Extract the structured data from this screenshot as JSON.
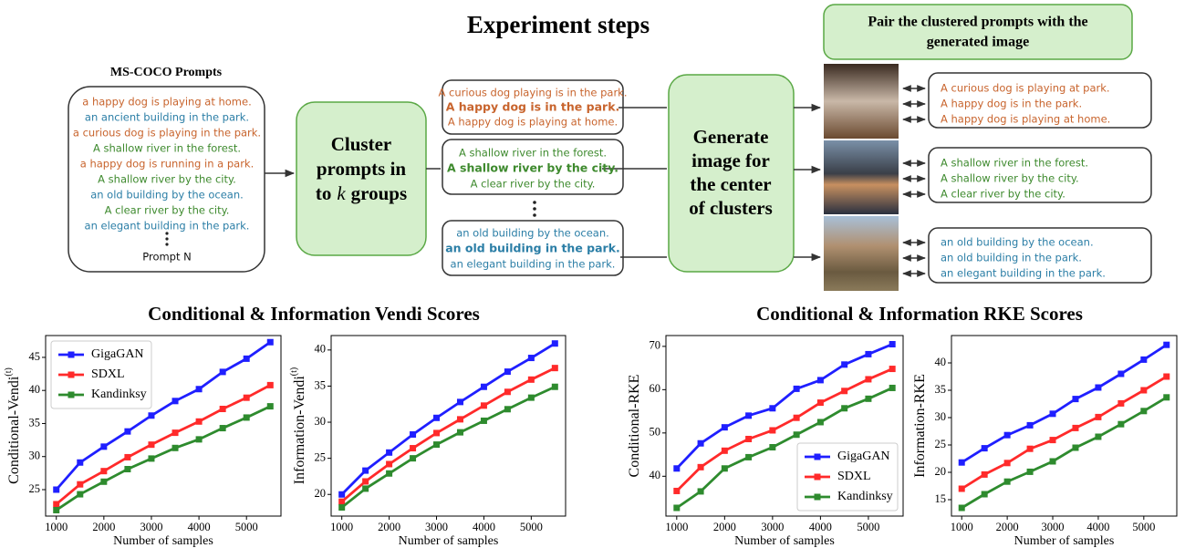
{
  "diagram": {
    "title": "Experiment steps",
    "pair_box": [
      "Pair the clustered prompts with the",
      "generated image"
    ],
    "prompts": {
      "label": "MS-COCO Prompts",
      "lines": [
        {
          "text": "a happy dog is playing at home.",
          "color": "#c8642d"
        },
        {
          "text": "an ancient building in the park.",
          "color": "#2b7ea6"
        },
        {
          "text": "a curious dog is playing in the park.",
          "color": "#c8642d"
        },
        {
          "text": "A shallow river in the forest.",
          "color": "#3e8a2e"
        },
        {
          "text": "a happy dog is running in a park.",
          "color": "#c8642d"
        },
        {
          "text": "A shallow river by the city.",
          "color": "#3e8a2e"
        },
        {
          "text": "an old building by the ocean.",
          "color": "#2b7ea6"
        },
        {
          "text": "A clear river by the city.",
          "color": "#3e8a2e"
        },
        {
          "text": "an elegant building in the park.",
          "color": "#2b7ea6"
        }
      ],
      "last": "Prompt N"
    },
    "cluster_box": {
      "lines": [
        "Cluster",
        "prompts in"
      ],
      "last_pre": "to",
      "k": "k",
      "last_post": "groups"
    },
    "clusters": [
      {
        "color": "#c8642d",
        "lines": [
          {
            "text": "A curious dog playing is in the park."
          },
          {
            "text": "A happy dog is in the park.",
            "bold": true
          },
          {
            "text": "A happy dog is playing at home."
          }
        ]
      },
      {
        "color": "#3e8a2e",
        "lines": [
          {
            "text": "A shallow river in the forest."
          },
          {
            "text": "A shallow river by the city.",
            "bold": true
          },
          {
            "text": "A clear river by the city."
          }
        ]
      },
      {
        "color": "#2b7ea6",
        "lines": [
          {
            "text": "an old building by the ocean."
          },
          {
            "text": "an old building in the park.",
            "bold": true
          },
          {
            "text": "an elegant building in the park."
          }
        ]
      }
    ],
    "generate_box": [
      "Generate",
      "image for",
      "the center",
      "of clusters"
    ],
    "pairs": [
      {
        "color": "#c8642d",
        "lines": [
          "A curious dog is playing at park.",
          "A happy dog is in the park.",
          "A happy dog is playing at home."
        ]
      },
      {
        "color": "#3e8a2e",
        "lines": [
          "A shallow river in the forest.",
          "A shallow river by the city.",
          "A clear river by the city."
        ]
      },
      {
        "color": "#2b7ea6",
        "lines": [
          "an old building by the ocean.",
          "an old building in the park.",
          "an elegant building in the park."
        ]
      }
    ]
  },
  "section_titles": [
    "Conditional & Information Vendi Scores",
    "Conditional & Information RKE Scores"
  ],
  "chart_data": [
    {
      "type": "line",
      "xlabel": "Number of samples",
      "ylabel": "Conditional-Vendi",
      "ylabel_sup": "(t)",
      "x": [
        1000,
        1500,
        2000,
        2500,
        3000,
        3500,
        4000,
        4500,
        5000,
        5500
      ],
      "xlim": [
        775,
        5725
      ],
      "xticks": [
        1000,
        2000,
        3000,
        4000,
        5000
      ],
      "ylim": [
        21,
        48.3
      ],
      "yticks": [
        25,
        30,
        35,
        40,
        45
      ],
      "legend": "upper left",
      "series": [
        {
          "name": "GigaGAN",
          "color": "#1f1fff",
          "values": [
            25.0,
            29.1,
            31.5,
            33.8,
            36.2,
            38.4,
            40.2,
            42.8,
            44.8,
            47.3
          ]
        },
        {
          "name": "SDXL",
          "color": "#ff2a2a",
          "values": [
            22.8,
            25.8,
            27.8,
            29.9,
            31.8,
            33.6,
            35.3,
            37.2,
            38.9,
            40.8
          ]
        },
        {
          "name": "Kandinksy",
          "color": "#2e8b2e",
          "values": [
            21.9,
            24.3,
            26.2,
            28.1,
            29.7,
            31.3,
            32.6,
            34.3,
            35.9,
            37.6
          ]
        }
      ]
    },
    {
      "type": "line",
      "xlabel": "Number of samples",
      "ylabel": "Information-Vendi",
      "ylabel_sup": "(t)",
      "x": [
        1000,
        1500,
        2000,
        2500,
        3000,
        3500,
        4000,
        4500,
        5000,
        5500
      ],
      "xlim": [
        775,
        5725
      ],
      "xticks": [
        1000,
        2000,
        3000,
        4000,
        5000
      ],
      "ylim": [
        17,
        42
      ],
      "yticks": [
        20,
        25,
        30,
        35,
        40
      ],
      "legend": false,
      "series": [
        {
          "name": "GigaGAN",
          "color": "#1f1fff",
          "values": [
            20.0,
            23.3,
            25.8,
            28.3,
            30.6,
            32.8,
            34.9,
            37.0,
            38.9,
            40.9
          ]
        },
        {
          "name": "SDXL",
          "color": "#ff2a2a",
          "values": [
            19.0,
            21.8,
            24.2,
            26.4,
            28.5,
            30.4,
            32.3,
            34.2,
            35.9,
            37.5
          ]
        },
        {
          "name": "Kandinksy",
          "color": "#2e8b2e",
          "values": [
            18.2,
            20.8,
            22.9,
            25.0,
            26.9,
            28.6,
            30.2,
            31.8,
            33.4,
            34.9
          ]
        }
      ]
    },
    {
      "type": "line",
      "xlabel": "Number of samples",
      "ylabel": "Conditional-RKE",
      "x": [
        1000,
        1500,
        2000,
        2500,
        3000,
        3500,
        4000,
        4500,
        5000,
        5500
      ],
      "xlim": [
        775,
        5725
      ],
      "xticks": [
        1000,
        2000,
        3000,
        4000,
        5000
      ],
      "ylim": [
        30.8,
        72.5
      ],
      "yticks": [
        40,
        50,
        60,
        70
      ],
      "legend": "lower right",
      "series": [
        {
          "name": "GigaGAN",
          "color": "#1f1fff",
          "values": [
            41.8,
            47.6,
            51.3,
            54.0,
            55.7,
            60.2,
            62.2,
            65.8,
            68.2,
            70.5
          ]
        },
        {
          "name": "SDXL",
          "color": "#ff2a2a",
          "values": [
            36.6,
            42.1,
            45.9,
            48.6,
            50.6,
            53.5,
            57.0,
            59.7,
            62.4,
            64.8
          ]
        },
        {
          "name": "Kandinksy",
          "color": "#2e8b2e",
          "values": [
            32.7,
            36.5,
            41.8,
            44.4,
            46.7,
            49.6,
            52.5,
            55.7,
            57.9,
            60.4
          ]
        }
      ]
    },
    {
      "type": "line",
      "xlabel": "Number of samples",
      "ylabel": "Information-RKE",
      "x": [
        1000,
        1500,
        2000,
        2500,
        3000,
        3500,
        4000,
        4500,
        5000,
        5500
      ],
      "xlim": [
        775,
        5725
      ],
      "xticks": [
        1000,
        2000,
        3000,
        4000,
        5000
      ],
      "ylim": [
        12,
        45
      ],
      "yticks": [
        15,
        20,
        25,
        30,
        35,
        40
      ],
      "legend": false,
      "series": [
        {
          "name": "GigaGAN",
          "color": "#1f1fff",
          "values": [
            21.8,
            24.4,
            26.8,
            28.6,
            30.7,
            33.4,
            35.5,
            38.0,
            40.6,
            43.3
          ]
        },
        {
          "name": "SDXL",
          "color": "#ff2a2a",
          "values": [
            17.0,
            19.6,
            21.7,
            24.3,
            25.9,
            28.1,
            30.1,
            32.6,
            35.0,
            37.5
          ]
        },
        {
          "name": "Kandinksy",
          "color": "#2e8b2e",
          "values": [
            13.5,
            16.0,
            18.3,
            20.1,
            22.0,
            24.5,
            26.5,
            28.8,
            31.2,
            33.7
          ]
        }
      ]
    }
  ]
}
